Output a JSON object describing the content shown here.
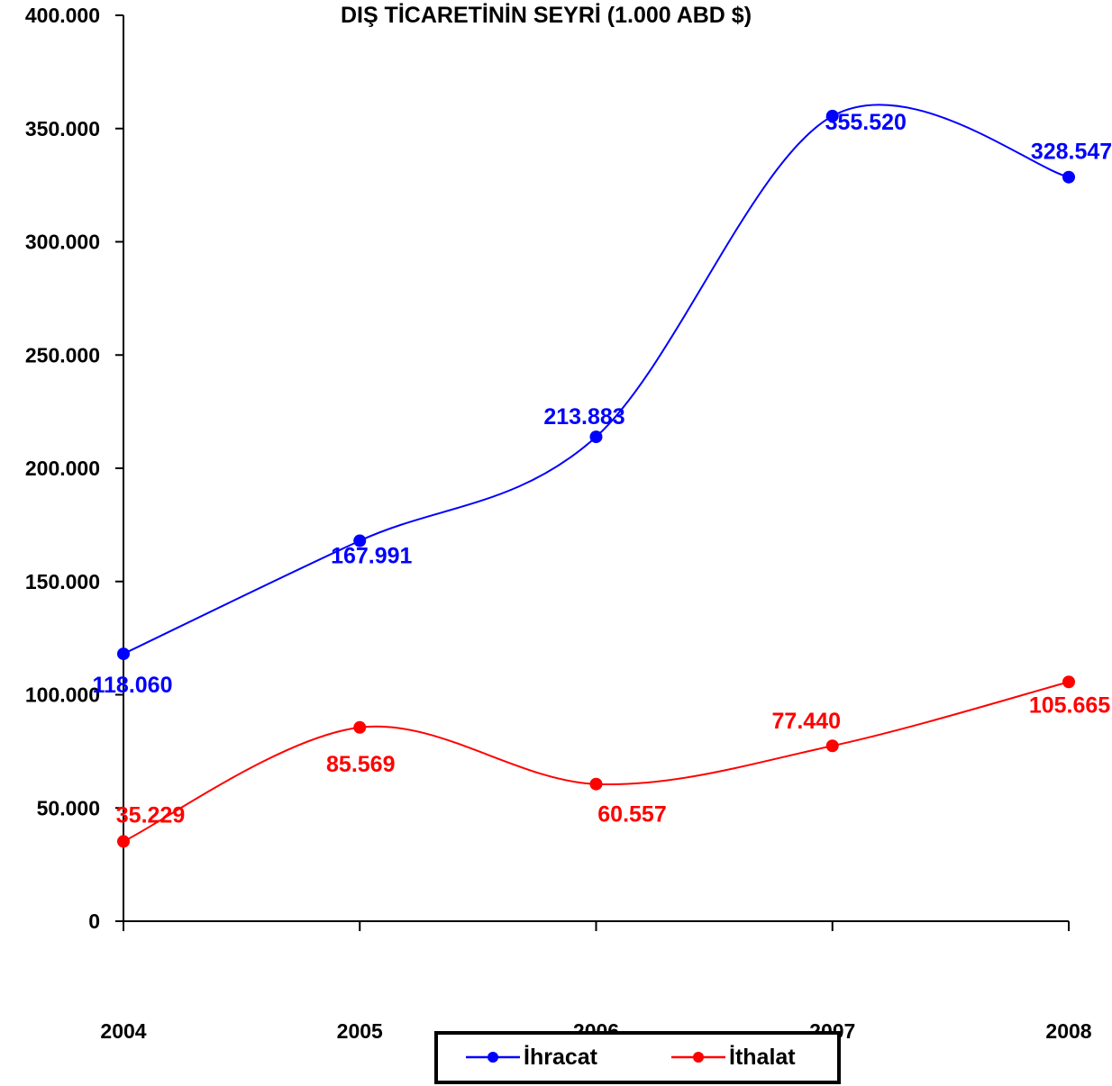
{
  "chart_data": {
    "type": "line",
    "title": "DIŞ TİCARETİNİN SEYRİ (1.000 ABD $)",
    "xlabel": "",
    "ylabel": "",
    "categories": [
      "2004",
      "2005",
      "2006",
      "2007",
      "2008"
    ],
    "ylim": [
      0,
      400000
    ],
    "y_ticks": [
      0,
      50000,
      100000,
      150000,
      200000,
      250000,
      300000,
      350000,
      400000
    ],
    "y_tick_labels": [
      "0",
      "50.000",
      "100.000",
      "150.000",
      "200.000",
      "250.000",
      "300.000",
      "350.000",
      "400.000"
    ],
    "grid": false,
    "smooth": true,
    "legend_position": "bottom",
    "series": [
      {
        "name": "İhracat",
        "color": "#0000ff",
        "values": [
          118060,
          167991,
          213883,
          355520,
          328547
        ],
        "labels": [
          "118.060",
          "167.991",
          "213.883",
          "355.520",
          "328.547"
        ]
      },
      {
        "name": "İthalat",
        "color": "#ff0000",
        "values": [
          35229,
          85569,
          60557,
          77440,
          105665
        ],
        "labels": [
          "35.229",
          "85.569",
          "60.557",
          "77.440",
          "105.665"
        ]
      }
    ]
  }
}
